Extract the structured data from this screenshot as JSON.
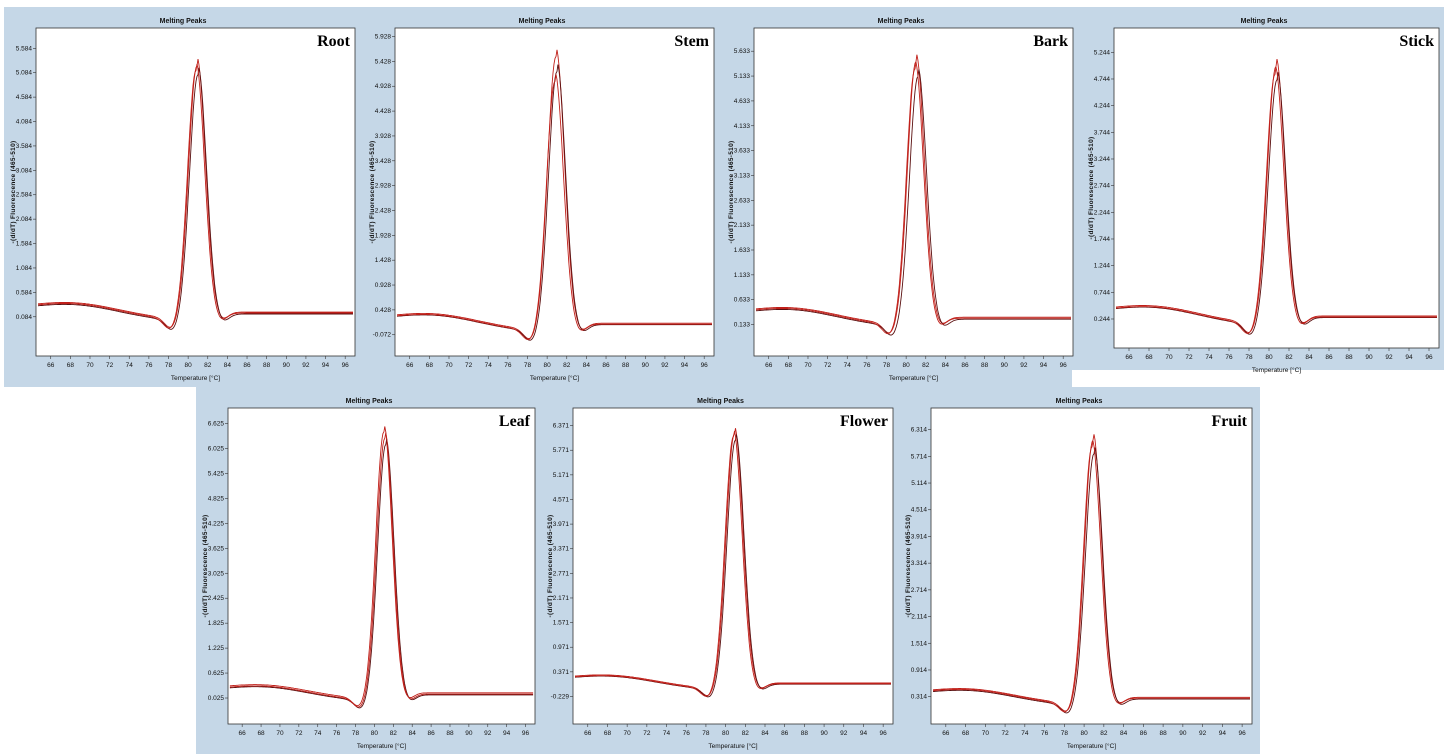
{
  "colors": {
    "background": "#c5d7e7",
    "plot": "#ffffff",
    "curve": "#c0201a",
    "curve_dark": "#5a1010"
  },
  "chart_data": [
    {
      "type": "line",
      "title": "Melting Peaks",
      "label": "Root",
      "xlabel": "Temperature [°C]",
      "ylabel": "-(d/dT) Fluorescence (465-510)",
      "xlim": [
        64.5,
        97
      ],
      "x_ticks": [
        "66",
        "68",
        "70",
        "72",
        "74",
        "76",
        "78",
        "80",
        "82",
        "84",
        "86",
        "88",
        "90",
        "92",
        "94",
        "96"
      ],
      "y_ticks": [
        "0.084",
        "0.584",
        "1.084",
        "1.584",
        "2.084",
        "2.584",
        "3.084",
        "3.584",
        "4.084",
        "4.584",
        "5.084",
        "5.584"
      ],
      "ylim": [
        -0.72,
        6.0
      ],
      "series": [
        {
          "baseline": 0.18,
          "peak_x": 80.9,
          "peak_y": 5.4
        },
        {
          "baseline": 0.14,
          "peak_x": 81.0,
          "peak_y": 5.22
        },
        {
          "baseline": 0.16,
          "peak_x": 80.8,
          "peak_y": 5.3
        }
      ]
    },
    {
      "type": "line",
      "title": "Melting Peaks",
      "label": "Stem",
      "xlabel": "Temperature [°C]",
      "ylabel": "-(d/dT) Fluorescence (465-510)",
      "xlim": [
        64.5,
        97
      ],
      "x_ticks": [
        "66",
        "68",
        "70",
        "72",
        "74",
        "76",
        "78",
        "80",
        "82",
        "84",
        "86",
        "88",
        "90",
        "92",
        "94",
        "96"
      ],
      "y_ticks": [
        "-0.072",
        "0.428",
        "0.928",
        "1.428",
        "1.928",
        "2.428",
        "2.928",
        "3.428",
        "3.928",
        "4.428",
        "4.928",
        "5.428",
        "5.928"
      ],
      "ylim": [
        -0.5,
        6.1
      ],
      "series": [
        {
          "baseline": 0.16,
          "peak_x": 80.9,
          "peak_y": 5.7
        },
        {
          "baseline": 0.13,
          "peak_x": 81.0,
          "peak_y": 5.4
        },
        {
          "baseline": 0.14,
          "peak_x": 80.8,
          "peak_y": 5.2
        }
      ]
    },
    {
      "type": "line",
      "title": "Melting Peaks",
      "label": "Bark",
      "xlabel": "Temperature [°C]",
      "ylabel": "-(d/dT) Fluorescence (465-510)",
      "xlim": [
        64.5,
        97
      ],
      "x_ticks": [
        "66",
        "68",
        "70",
        "72",
        "74",
        "76",
        "78",
        "80",
        "82",
        "84",
        "86",
        "88",
        "90",
        "92",
        "94",
        "96"
      ],
      "y_ticks": [
        "0.133",
        "0.633",
        "1.133",
        "1.633",
        "2.133",
        "2.633",
        "3.133",
        "3.633",
        "4.133",
        "4.633",
        "5.133",
        "5.633"
      ],
      "ylim": [
        -0.5,
        6.1
      ],
      "series": [
        {
          "baseline": 0.28,
          "peak_x": 81.0,
          "peak_y": 5.6
        },
        {
          "baseline": 0.24,
          "peak_x": 81.2,
          "peak_y": 5.3
        },
        {
          "baseline": 0.26,
          "peak_x": 80.9,
          "peak_y": 5.45
        }
      ]
    },
    {
      "type": "line",
      "title": "Melting Peaks",
      "label": "Stick",
      "xlabel": "Temperature [°C]",
      "ylabel": "-(d/dT) Fluorescence (465-510)",
      "xlim": [
        64.5,
        97
      ],
      "x_ticks": [
        "66",
        "68",
        "70",
        "72",
        "74",
        "76",
        "78",
        "80",
        "82",
        "84",
        "86",
        "88",
        "90",
        "92",
        "94",
        "96"
      ],
      "y_ticks": [
        "0.244",
        "0.744",
        "1.244",
        "1.744",
        "2.244",
        "2.744",
        "3.244",
        "3.744",
        "4.244",
        "4.744",
        "5.244"
      ],
      "ylim": [
        -0.3,
        5.7
      ],
      "series": [
        {
          "baseline": 0.3,
          "peak_x": 80.7,
          "peak_y": 5.15
        },
        {
          "baseline": 0.27,
          "peak_x": 80.8,
          "peak_y": 4.9
        },
        {
          "baseline": 0.28,
          "peak_x": 80.6,
          "peak_y": 5.0
        }
      ]
    },
    {
      "type": "line",
      "title": "Melting Peaks",
      "label": "Leaf",
      "xlabel": "Temperature [°C]",
      "ylabel": "-(d/dT) Fluorescence (465-510)",
      "xlim": [
        64.5,
        97
      ],
      "x_ticks": [
        "66",
        "68",
        "70",
        "72",
        "74",
        "76",
        "78",
        "80",
        "82",
        "84",
        "86",
        "88",
        "90",
        "92",
        "94",
        "96"
      ],
      "y_ticks": [
        "0.025",
        "0.625",
        "1.225",
        "1.825",
        "2.425",
        "3.025",
        "3.625",
        "4.225",
        "4.825",
        "5.425",
        "6.025",
        "6.625"
      ],
      "ylim": [
        -0.6,
        7.0
      ],
      "series": [
        {
          "baseline": 0.15,
          "peak_x": 81.0,
          "peak_y": 6.6
        },
        {
          "baseline": 0.1,
          "peak_x": 81.2,
          "peak_y": 6.3
        },
        {
          "baseline": 0.12,
          "peak_x": 81.1,
          "peak_y": 6.45
        }
      ]
    },
    {
      "type": "line",
      "title": "Melting Peaks",
      "label": "Flower",
      "xlabel": "Temperature [°C]",
      "ylabel": "-(d/dT) Fluorescence (465-510)",
      "xlim": [
        64.5,
        97
      ],
      "x_ticks": [
        "66",
        "68",
        "70",
        "72",
        "74",
        "76",
        "78",
        "80",
        "82",
        "84",
        "86",
        "88",
        "90",
        "92",
        "94",
        "96"
      ],
      "y_ticks": [
        "-0.229",
        "0.371",
        "0.971",
        "1.571",
        "2.171",
        "2.771",
        "3.371",
        "3.971",
        "4.571",
        "5.171",
        "5.771",
        "6.371"
      ],
      "ylim": [
        -0.9,
        6.8
      ],
      "series": [
        {
          "baseline": 0.1,
          "peak_x": 80.9,
          "peak_y": 6.35
        },
        {
          "baseline": 0.07,
          "peak_x": 81.0,
          "peak_y": 6.2
        },
        {
          "baseline": 0.08,
          "peak_x": 80.8,
          "peak_y": 6.28
        }
      ]
    },
    {
      "type": "line",
      "title": "Melting Peaks",
      "label": "Fruit",
      "xlabel": "Temperature [°C]",
      "ylabel": "-(d/dT) Fluorescence (465-510)",
      "xlim": [
        64.5,
        97
      ],
      "x_ticks": [
        "66",
        "68",
        "70",
        "72",
        "74",
        "76",
        "78",
        "80",
        "82",
        "84",
        "86",
        "88",
        "90",
        "92",
        "94",
        "96"
      ],
      "y_ticks": [
        "0.314",
        "0.914",
        "1.514",
        "2.114",
        "2.714",
        "3.314",
        "3.914",
        "4.514",
        "5.114",
        "5.714",
        "6.314"
      ],
      "ylim": [
        -0.3,
        6.8
      ],
      "series": [
        {
          "baseline": 0.3,
          "peak_x": 80.9,
          "peak_y": 6.25
        },
        {
          "baseline": 0.26,
          "peak_x": 81.0,
          "peak_y": 5.95
        },
        {
          "baseline": 0.28,
          "peak_x": 80.8,
          "peak_y": 6.1
        }
      ]
    }
  ]
}
